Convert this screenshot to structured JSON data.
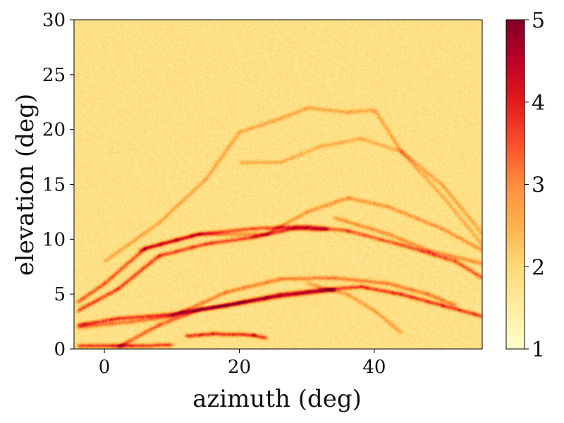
{
  "chart_data": {
    "type": "heatmap",
    "title": "",
    "xlabel": "azimuth (deg)",
    "ylabel": "elevation (deg)",
    "xlim": [
      -4.5,
      56
    ],
    "ylim": [
      0,
      30
    ],
    "x_ticks": [
      0,
      20,
      40
    ],
    "y_ticks": [
      0,
      5,
      10,
      15,
      20,
      25,
      30
    ],
    "colorbar": {
      "min": 1,
      "max": 5,
      "ticks": [
        1,
        2,
        3,
        4,
        5
      ],
      "colormap": "YlOrRd",
      "colors": [
        "#ffffcc",
        "#ffeda0",
        "#fed976",
        "#feb24c",
        "#fd8d3c",
        "#fc4e2a",
        "#e31a1c",
        "#bd0026",
        "#800026"
      ]
    },
    "background_value": 1.8,
    "ridges": [
      {
        "points": [
          [
            -4,
            4.3
          ],
          [
            0,
            6.0
          ],
          [
            6,
            9.2
          ],
          [
            14,
            10.5
          ],
          [
            22,
            11.0
          ],
          [
            30,
            11.2
          ],
          [
            36,
            10.8
          ],
          [
            44,
            9.5
          ],
          [
            52,
            8.0
          ],
          [
            56,
            6.5
          ]
        ],
        "value": 3.6
      },
      {
        "points": [
          [
            -4,
            3.5
          ],
          [
            2,
            5.5
          ],
          [
            8,
            8.5
          ],
          [
            15,
            9.6
          ],
          [
            22,
            10.2
          ],
          [
            28,
            11.0
          ],
          [
            33,
            10.9
          ]
        ],
        "value": 3.8
      },
      {
        "points": [
          [
            5,
            9.0
          ],
          [
            14,
            10.5
          ],
          [
            24,
            10.5
          ],
          [
            30,
            12.5
          ],
          [
            36,
            13.8
          ],
          [
            42,
            13.0
          ],
          [
            50,
            11.0
          ],
          [
            56,
            9.0
          ]
        ],
        "value": 2.9
      },
      {
        "points": [
          [
            0,
            8.0
          ],
          [
            8,
            11.5
          ],
          [
            15,
            15.5
          ],
          [
            20,
            19.8
          ],
          [
            26,
            21.0
          ],
          [
            30,
            22.0
          ],
          [
            36,
            21.6
          ],
          [
            40,
            21.8
          ],
          [
            44,
            18.0
          ],
          [
            50,
            15.0
          ],
          [
            56,
            10.5
          ]
        ],
        "value": 2.7
      },
      {
        "points": [
          [
            20,
            17.0
          ],
          [
            26,
            17.0
          ],
          [
            32,
            18.5
          ],
          [
            38,
            19.2
          ],
          [
            44,
            18.0
          ],
          [
            50,
            14.0
          ],
          [
            56,
            9.5
          ]
        ],
        "value": 2.6
      },
      {
        "points": [
          [
            -4,
            2.2
          ],
          [
            2,
            2.8
          ],
          [
            10,
            3.2
          ],
          [
            18,
            4.0
          ],
          [
            26,
            5.0
          ],
          [
            32,
            5.4
          ],
          [
            38,
            5.7
          ],
          [
            44,
            5.0
          ],
          [
            50,
            4.0
          ],
          [
            56,
            3.0
          ]
        ],
        "value": 3.9
      },
      {
        "points": [
          [
            -4,
            2.0
          ],
          [
            4,
            2.5
          ],
          [
            10,
            3.0
          ],
          [
            18,
            5.2
          ],
          [
            26,
            6.4
          ],
          [
            34,
            6.5
          ],
          [
            42,
            6.0
          ],
          [
            48,
            5.0
          ],
          [
            52,
            4.0
          ]
        ],
        "value": 3.2
      },
      {
        "points": [
          [
            2,
            0.2
          ],
          [
            8,
            2.2
          ],
          [
            14,
            3.6
          ],
          [
            20,
            4.2
          ],
          [
            26,
            4.8
          ],
          [
            34,
            5.4
          ]
        ],
        "value": 3.5
      },
      {
        "points": [
          [
            30,
            6.0
          ],
          [
            36,
            5.0
          ],
          [
            40,
            3.5
          ],
          [
            44,
            1.5
          ]
        ],
        "value": 2.8
      },
      {
        "points": [
          [
            12,
            1.2
          ],
          [
            16,
            1.4
          ],
          [
            22,
            1.3
          ],
          [
            24,
            1.0
          ]
        ],
        "value": 4.0
      },
      {
        "points": [
          [
            -4,
            0.3
          ],
          [
            4,
            0.3
          ],
          [
            10,
            0.4
          ]
        ],
        "value": 3.9
      },
      {
        "points": [
          [
            34,
            12.0
          ],
          [
            42,
            10.5
          ],
          [
            48,
            9.0
          ],
          [
            56,
            7.8
          ]
        ],
        "value": 3.0
      }
    ]
  }
}
